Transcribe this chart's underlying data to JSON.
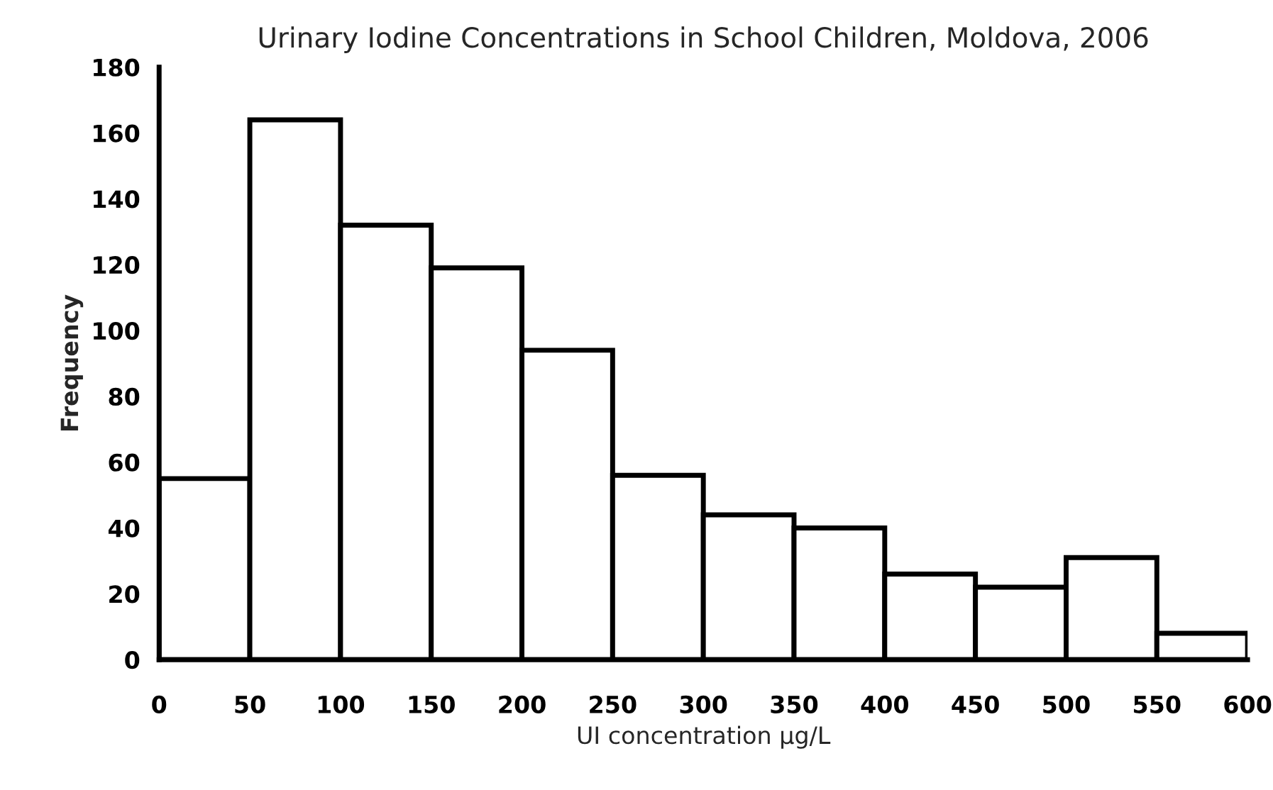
{
  "chart_data": {
    "type": "histogram",
    "title": "Urinary Iodine Concentrations in School Children, Moldova, 2006",
    "xlabel": "UI concentration µg/L",
    "ylabel": "Frequency",
    "bins": [
      0,
      50,
      100,
      150,
      200,
      250,
      300,
      350,
      400,
      450,
      500,
      550,
      600
    ],
    "values": [
      55,
      164,
      132,
      119,
      94,
      56,
      44,
      40,
      26,
      22,
      31,
      8
    ],
    "color": "#ffffff",
    "xlim": [
      0,
      600
    ],
    "xticks": [
      0,
      50,
      100,
      150,
      200,
      250,
      300,
      350,
      400,
      450,
      500,
      550,
      600
    ],
    "ylim": [
      0,
      180
    ],
    "yticks": [
      0,
      20,
      40,
      60,
      80,
      100,
      120,
      140,
      160,
      180
    ],
    "grid": false
  }
}
